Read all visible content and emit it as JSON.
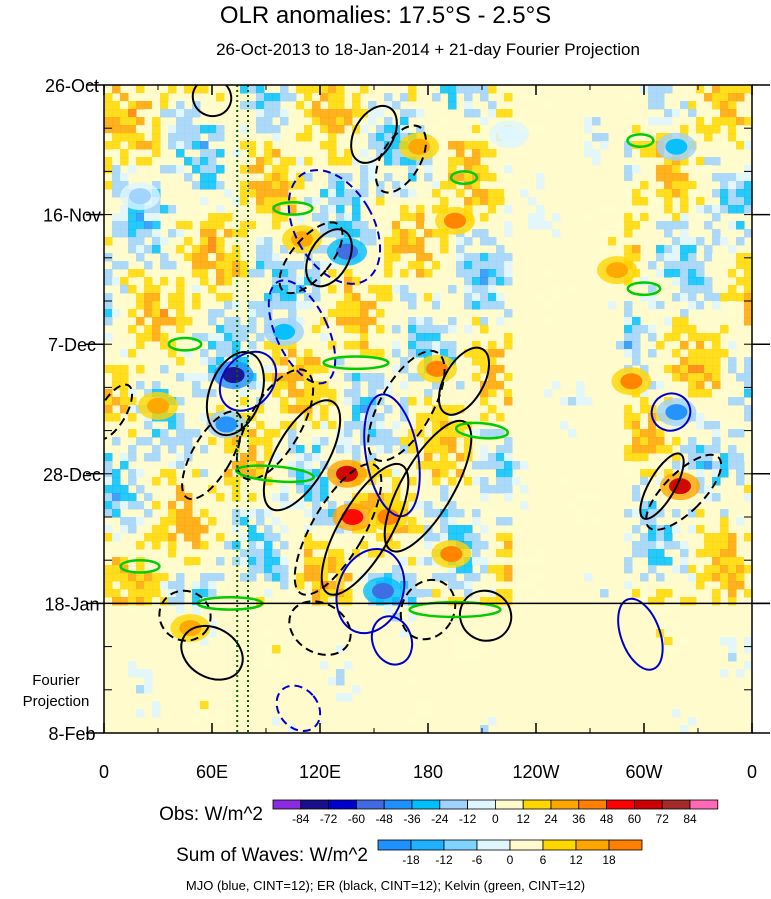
{
  "chart_data": {
    "type": "heatmap",
    "title": "OLR anomalies: 17.5°S - 2.5°S",
    "subtitle": "26-Oct-2013 to 18-Jan-2014 + 21-day Fourier Projection",
    "x_ticks": [
      {
        "label": "0",
        "lon": 0
      },
      {
        "label": "60E",
        "lon": 60
      },
      {
        "label": "120E",
        "lon": 120
      },
      {
        "label": "180",
        "lon": 180
      },
      {
        "label": "120W",
        "lon": 240
      },
      {
        "label": "60W",
        "lon": 300
      },
      {
        "label": "0",
        "lon": 360
      }
    ],
    "xlim": [
      0,
      360
    ],
    "y_ticks": [
      {
        "label": "26-Oct",
        "day": 0
      },
      {
        "label": "16-Nov",
        "day": 21
      },
      {
        "label": "7-Dec",
        "day": 42
      },
      {
        "label": "28-Dec",
        "day": 63
      },
      {
        "label": "18-Jan",
        "day": 84
      },
      {
        "label": "8-Feb",
        "day": 105
      }
    ],
    "ylim_days": [
      0,
      105
    ],
    "projection_start_day": 84,
    "projection_label": "Fourier\nProjection",
    "obs_colorbar": {
      "label": "Obs: W/m^2",
      "levels": [
        "-84",
        "-72",
        "-60",
        "-48",
        "-36",
        "-24",
        "-12",
        "0",
        "12",
        "24",
        "36",
        "48",
        "60",
        "72",
        "84"
      ],
      "colors": [
        "#8a2be2",
        "#1a0f8c",
        "#0000cd",
        "#4169e1",
        "#1e90ff",
        "#00bfff",
        "#9fd2ff",
        "#dff6ff",
        "#fffbcc",
        "#ffd700",
        "#ffa500",
        "#ff7f00",
        "#ff0000",
        "#cc0000",
        "#a52a2a",
        "#ff69b4"
      ]
    },
    "waves_colorbar": {
      "label": "Sum of Waves: W/m^2",
      "levels": [
        "-18",
        "-12",
        "-6",
        "0",
        "6",
        "12",
        "18"
      ],
      "colors": [
        "#1e90ff",
        "#1fb0ff",
        "#7fd4ff",
        "#dff6ff",
        "#fffbcc",
        "#ffd700",
        "#ffa500",
        "#ff7f00"
      ]
    },
    "wave_legend": "MJO (blue, CINT=12); ER (black, CINT=12); Kelvin (green, CINT=12)",
    "wave_colors": {
      "MJO": "#0000cc",
      "ER": "#000000",
      "Kelvin": "#00cc00"
    },
    "vertical_marker_lons": [
      74,
      80
    ],
    "features": [
      {
        "lon": 72,
        "day": 47,
        "value": -80
      },
      {
        "lon": 135,
        "day": 27,
        "value": -60
      },
      {
        "lon": 155,
        "day": 82,
        "value": -60
      },
      {
        "lon": 68,
        "day": 55,
        "value": -48
      },
      {
        "lon": 135,
        "day": 63,
        "value": 60
      },
      {
        "lon": 138,
        "day": 70,
        "value": 48
      },
      {
        "lon": 185,
        "day": 46,
        "value": 36
      },
      {
        "lon": 193,
        "day": 76,
        "value": 36
      },
      {
        "lon": 158,
        "day": 70,
        "value": 36
      },
      {
        "lon": 320,
        "day": 65,
        "value": 60
      },
      {
        "lon": 318,
        "day": 53,
        "value": -48
      },
      {
        "lon": 293,
        "day": 48,
        "value": 36
      },
      {
        "lon": 318,
        "day": 10,
        "value": -36
      },
      {
        "lon": 195,
        "day": 22,
        "value": 36
      },
      {
        "lon": 100,
        "day": 40,
        "value": -36
      },
      {
        "lon": 30,
        "day": 52,
        "value": 24
      },
      {
        "lon": 48,
        "day": 88,
        "value": 24
      },
      {
        "lon": 175,
        "day": 10,
        "value": 24
      },
      {
        "lon": 110,
        "day": 25,
        "value": 24
      },
      {
        "lon": 20,
        "day": 18,
        "value": -24
      },
      {
        "lon": 225,
        "day": 8,
        "value": -12
      },
      {
        "lon": 285,
        "day": 30,
        "value": 24
      }
    ],
    "wave_contours": [
      {
        "wave": "MJO",
        "sign": "neg",
        "lon": 128,
        "day": 23,
        "rx": 0.06,
        "ry": 10,
        "angle": -30
      },
      {
        "wave": "MJO",
        "sign": "neg",
        "lon": 110,
        "day": 40,
        "rx": 0.04,
        "ry": 9,
        "angle": -25
      },
      {
        "wave": "MJO",
        "sign": "pos",
        "lon": 80,
        "day": 48,
        "rx": 0.05,
        "ry": 4,
        "angle": -50
      },
      {
        "wave": "MJO",
        "sign": "pos",
        "lon": 160,
        "day": 60,
        "rx": 0.04,
        "ry": 10,
        "angle": -10
      },
      {
        "wave": "MJO",
        "sign": "pos",
        "lon": 148,
        "day": 82,
        "rx": 0.05,
        "ry": 7,
        "angle": 20
      },
      {
        "wave": "MJO",
        "sign": "pos",
        "lon": 160,
        "day": 90,
        "rx": 0.03,
        "ry": 4,
        "angle": -20
      },
      {
        "wave": "MJO",
        "sign": "pos",
        "lon": 315,
        "day": 53,
        "rx": 0.03,
        "ry": 3,
        "angle": -20
      },
      {
        "wave": "MJO",
        "sign": "pos",
        "lon": 298,
        "day": 89,
        "rx": 0.03,
        "ry": 6,
        "angle": -20
      },
      {
        "wave": "MJO",
        "sign": "neg",
        "lon": 108,
        "day": 101,
        "rx": 0.03,
        "ry": 4,
        "angle": -40
      },
      {
        "wave": "ER",
        "sign": "pos",
        "lon": 73,
        "day": 50,
        "rx": 0.04,
        "ry": 7,
        "angle": 20
      },
      {
        "wave": "ER",
        "sign": "pos",
        "lon": 125,
        "day": 28,
        "rx": 0.03,
        "ry": 5,
        "angle": 30
      },
      {
        "wave": "ER",
        "sign": "neg",
        "lon": 115,
        "day": 28,
        "rx": 0.03,
        "ry": 7,
        "angle": 40
      },
      {
        "wave": "ER",
        "sign": "pos",
        "lon": 110,
        "day": 60,
        "rx": 0.04,
        "ry": 10,
        "angle": 30
      },
      {
        "wave": "ER",
        "sign": "neg",
        "lon": 95,
        "day": 55,
        "rx": 0.04,
        "ry": 10,
        "angle": 30
      },
      {
        "wave": "ER",
        "sign": "pos",
        "lon": 145,
        "day": 72,
        "rx": 0.04,
        "ry": 12,
        "angle": 30
      },
      {
        "wave": "ER",
        "sign": "neg",
        "lon": 130,
        "day": 72,
        "rx": 0.04,
        "ry": 12,
        "angle": 30
      },
      {
        "wave": "ER",
        "sign": "pos",
        "lon": 180,
        "day": 65,
        "rx": 0.04,
        "ry": 12,
        "angle": 30
      },
      {
        "wave": "ER",
        "sign": "neg",
        "lon": 168,
        "day": 52,
        "rx": 0.04,
        "ry": 10,
        "angle": 30
      },
      {
        "wave": "ER",
        "sign": "pos",
        "lon": 200,
        "day": 48,
        "rx": 0.03,
        "ry": 6,
        "angle": 30
      },
      {
        "wave": "ER",
        "sign": "neg",
        "lon": 60,
        "day": 60,
        "rx": 0.03,
        "ry": 8,
        "angle": 30
      },
      {
        "wave": "ER",
        "sign": "neg",
        "lon": 165,
        "day": 12,
        "rx": 0.03,
        "ry": 6,
        "angle": 30
      },
      {
        "wave": "ER",
        "sign": "pos",
        "lon": 150,
        "day": 8,
        "rx": 0.03,
        "ry": 5,
        "angle": 30
      },
      {
        "wave": "ER",
        "sign": "pos",
        "lon": 212,
        "day": 86,
        "rx": 0.04,
        "ry": 4,
        "angle": 30
      },
      {
        "wave": "ER",
        "sign": "neg",
        "lon": 120,
        "day": 88,
        "rx": 0.05,
        "ry": 4,
        "angle": 30
      },
      {
        "wave": "ER",
        "sign": "pos",
        "lon": 60,
        "day": 92,
        "rx": 0.05,
        "ry": 4,
        "angle": 30
      },
      {
        "wave": "ER",
        "sign": "neg",
        "lon": 45,
        "day": 86,
        "rx": 0.04,
        "ry": 4,
        "angle": 30
      },
      {
        "wave": "ER",
        "sign": "neg",
        "lon": 180,
        "day": 85,
        "rx": 0.04,
        "ry": 5,
        "angle": 30
      },
      {
        "wave": "ER",
        "sign": "pos",
        "lon": 60,
        "day": 2,
        "rx": 0.03,
        "ry": 3,
        "angle": 30
      },
      {
        "wave": "ER",
        "sign": "pos",
        "lon": 310,
        "day": 65,
        "rx": 0.02,
        "ry": 6,
        "angle": 30
      },
      {
        "wave": "ER",
        "sign": "neg",
        "lon": 322,
        "day": 66,
        "rx": 0.03,
        "ry": 8,
        "angle": 45
      },
      {
        "wave": "ER",
        "sign": "neg",
        "lon": 5,
        "day": 53,
        "rx": 0.02,
        "ry": 5,
        "angle": 30
      },
      {
        "wave": "Kelvin",
        "sign": "pos",
        "lon": 45,
        "day": 42,
        "rx": 0.025,
        "ry": 1,
        "angle": 0
      },
      {
        "wave": "Kelvin",
        "sign": "pos",
        "lon": 105,
        "day": 20,
        "rx": 0.03,
        "ry": 1,
        "angle": 0
      },
      {
        "wave": "Kelvin",
        "sign": "pos",
        "lon": 140,
        "day": 45,
        "rx": 0.05,
        "ry": 1,
        "angle": 0
      },
      {
        "wave": "Kelvin",
        "sign": "pos",
        "lon": 210,
        "day": 56,
        "rx": 0.04,
        "ry": 1.2,
        "angle": 5
      },
      {
        "wave": "Kelvin",
        "sign": "pos",
        "lon": 95,
        "day": 63,
        "rx": 0.06,
        "ry": 1.2,
        "angle": 5
      },
      {
        "wave": "Kelvin",
        "sign": "pos",
        "lon": 195,
        "day": 85,
        "rx": 0.07,
        "ry": 1.2,
        "angle": 0
      },
      {
        "wave": "Kelvin",
        "sign": "pos",
        "lon": 70,
        "day": 84,
        "rx": 0.05,
        "ry": 1,
        "angle": 0
      },
      {
        "wave": "Kelvin",
        "sign": "pos",
        "lon": 20,
        "day": 78,
        "rx": 0.03,
        "ry": 1,
        "angle": 0
      },
      {
        "wave": "Kelvin",
        "sign": "pos",
        "lon": 300,
        "day": 33,
        "rx": 0.025,
        "ry": 1,
        "angle": 0
      },
      {
        "wave": "Kelvin",
        "sign": "pos",
        "lon": 298,
        "day": 9,
        "rx": 0.02,
        "ry": 1,
        "angle": 0
      },
      {
        "wave": "Kelvin",
        "sign": "pos",
        "lon": 200,
        "day": 15,
        "rx": 0.02,
        "ry": 1,
        "angle": 0
      }
    ]
  }
}
